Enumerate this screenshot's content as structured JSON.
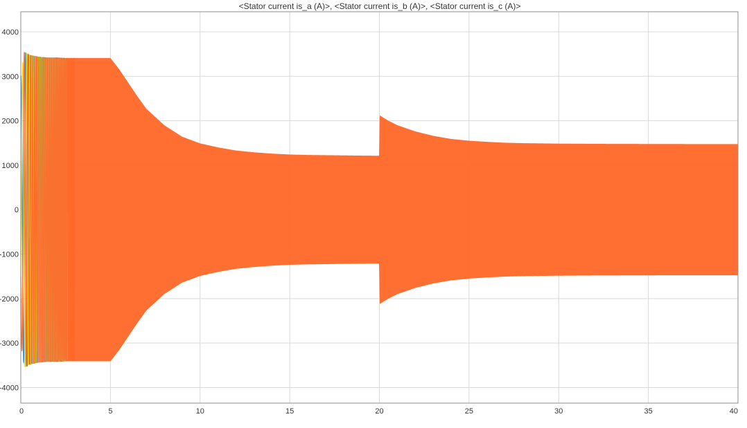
{
  "chart_data": {
    "type": "line",
    "title": "<Stator current is_a (A)>, <Stator current is_b (A)>, <Stator current is_c (A)>",
    "xlabel": "",
    "ylabel": "",
    "xlim": [
      0,
      40
    ],
    "ylim": [
      -4350,
      4450
    ],
    "x_ticks": [
      0,
      5,
      10,
      15,
      20,
      25,
      30,
      35,
      40
    ],
    "y_ticks": [
      -4000,
      -3000,
      -2000,
      -1000,
      0,
      1000,
      2000,
      3000,
      4000
    ],
    "x_tick_labels": [
      "0",
      "5",
      "10",
      "15",
      "20",
      "25",
      "30",
      "35",
      "40"
    ],
    "y_tick_labels": [
      "-4000",
      "-3000",
      "-2000",
      "-1000",
      "0",
      "1000",
      "2000",
      "3000",
      "4000"
    ],
    "grid": true,
    "legend": "none",
    "series": [
      {
        "color": "#2196f3"
      },
      {
        "color": "#f5d90a"
      },
      {
        "color": "#ff6a2b"
      }
    ],
    "envelope_points": {
      "x": [
        0,
        0.2,
        0.5,
        1,
        1.5,
        2,
        2.5,
        3,
        5,
        5.5,
        6,
        6.5,
        7,
        8,
        9,
        10,
        11,
        12,
        13,
        14,
        15,
        16,
        17,
        18,
        19,
        19.99,
        20.02,
        20.5,
        21,
        22,
        23,
        24,
        25,
        26,
        27,
        28,
        30,
        32,
        34,
        36,
        38,
        40
      ],
      "amplitude": [
        3000,
        3550,
        3480,
        3440,
        3420,
        3420,
        3410,
        3410,
        3410,
        3150,
        2850,
        2550,
        2270,
        1900,
        1640,
        1490,
        1400,
        1330,
        1290,
        1260,
        1240,
        1230,
        1225,
        1220,
        1215,
        1212,
        2120,
        2000,
        1900,
        1760,
        1660,
        1590,
        1550,
        1525,
        1505,
        1495,
        1485,
        1480,
        1478,
        1476,
        1475,
        1475
      ]
    }
  }
}
